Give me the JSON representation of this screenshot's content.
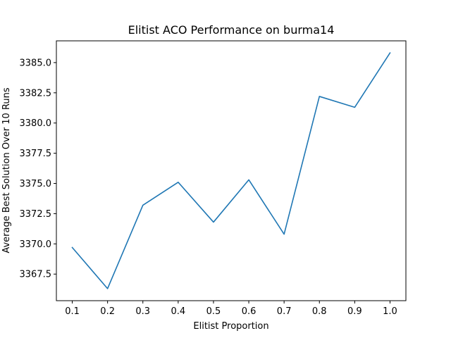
{
  "chart_data": {
    "type": "line",
    "title": "Elitist ACO Performance on burma14",
    "xlabel": "Elitist Proportion",
    "ylabel": "Average Best Solution Over 10 Runs",
    "x": [
      0.1,
      0.2,
      0.3,
      0.4,
      0.5,
      0.6,
      0.7,
      0.8,
      0.9,
      1.0
    ],
    "x_tick_labels": [
      "0.1",
      "0.2",
      "0.3",
      "0.4",
      "0.5",
      "0.6",
      "0.7",
      "0.8",
      "0.9",
      "1.0"
    ],
    "y_ticks": [
      3367.5,
      3370.0,
      3372.5,
      3375.0,
      3377.5,
      3380.0,
      3382.5,
      3385.0
    ],
    "y_tick_labels": [
      "3367.5",
      "3370.0",
      "3372.5",
      "3375.0",
      "3377.5",
      "3380.0",
      "3382.5",
      "3385.0"
    ],
    "series": [
      {
        "values": [
          3369.7,
          3366.3,
          3373.2,
          3375.1,
          3371.8,
          3375.3,
          3370.8,
          3382.2,
          3381.3,
          3385.8
        ],
        "color": "#1f77b4"
      }
    ],
    "xlim": [
      0.055,
      1.045
    ],
    "ylim": [
      3365.3,
      3386.8
    ],
    "grid": false,
    "legend": "none"
  }
}
